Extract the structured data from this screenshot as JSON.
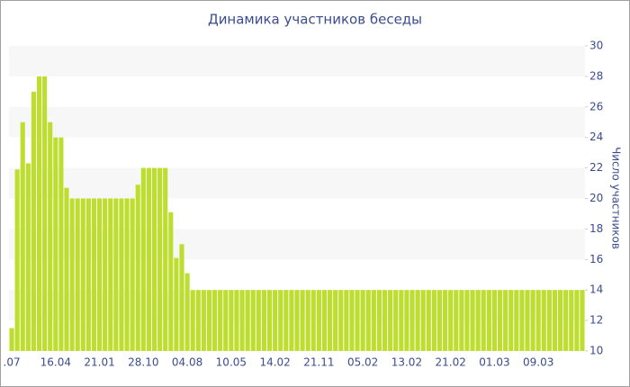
{
  "chart_data": {
    "type": "bar",
    "title": "Динамика участников беседы",
    "y_label": "Число участников",
    "categories": [
      ".07",
      null,
      null,
      null,
      null,
      null,
      null,
      null,
      "16.04",
      null,
      null,
      null,
      null,
      null,
      null,
      null,
      "21.01",
      null,
      null,
      null,
      null,
      null,
      null,
      null,
      "28.10",
      null,
      null,
      null,
      null,
      null,
      null,
      null,
      "04.08",
      null,
      null,
      null,
      null,
      null,
      null,
      null,
      "10.05",
      null,
      null,
      null,
      null,
      null,
      null,
      null,
      "14.02",
      null,
      null,
      null,
      null,
      null,
      null,
      null,
      "21.11",
      null,
      null,
      null,
      null,
      null,
      null,
      null,
      "05.02",
      null,
      null,
      null,
      null,
      null,
      null,
      null,
      "13.02",
      null,
      null,
      null,
      null,
      null,
      null,
      null,
      "21.02",
      null,
      null,
      null,
      null,
      null,
      null,
      null,
      "01.03",
      null,
      null,
      null,
      null,
      null,
      null,
      null,
      "09.03",
      null,
      null,
      null,
      null,
      null,
      null,
      null,
      null
    ],
    "values": [
      11.5,
      21.9,
      25,
      22.3,
      27,
      28,
      28,
      25,
      24,
      24,
      20.7,
      20,
      20,
      20,
      20,
      20,
      20,
      20,
      20,
      20,
      20,
      20,
      20,
      20.9,
      22,
      22,
      22,
      22,
      22,
      19.1,
      16.1,
      17,
      15.1,
      14,
      14,
      14,
      14,
      14,
      14,
      14,
      14,
      14,
      14,
      14,
      14,
      14,
      14,
      14,
      14,
      14,
      14,
      14,
      14,
      14,
      14,
      14,
      14,
      14,
      14,
      14,
      14,
      14,
      14,
      14,
      14,
      14,
      14,
      14,
      14,
      14,
      14,
      14,
      14,
      14,
      14,
      14,
      14,
      14,
      14,
      14,
      14,
      14,
      14,
      14,
      14,
      14,
      14,
      14,
      14,
      14,
      14,
      14,
      14,
      14,
      14,
      14,
      14,
      14,
      14,
      14,
      14,
      14,
      14,
      14,
      14
    ],
    "color": "#bede2f",
    "ylim": [
      10,
      30
    ],
    "yticks": [
      10,
      12,
      14,
      16,
      18,
      20,
      22,
      24,
      26,
      28,
      30
    ],
    "grid": "bands",
    "y_axis_side": "right"
  }
}
